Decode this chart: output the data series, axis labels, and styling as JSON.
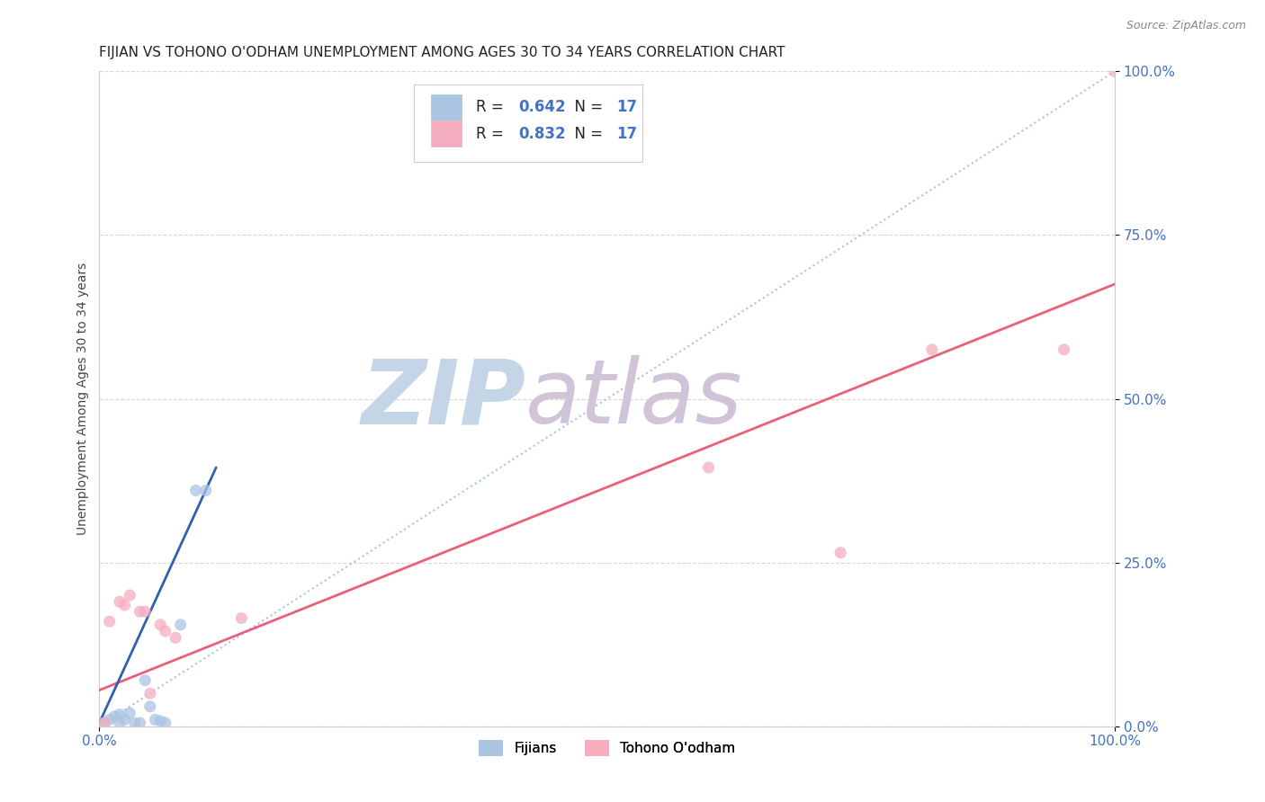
{
  "title": "FIJIAN VS TOHONO O'ODHAM UNEMPLOYMENT AMONG AGES 30 TO 34 YEARS CORRELATION CHART",
  "source": "Source: ZipAtlas.com",
  "ylabel": "Unemployment Among Ages 30 to 34 years",
  "xlim": [
    0.0,
    1.0
  ],
  "ylim": [
    0.0,
    1.0
  ],
  "xtick_positions": [
    0.0,
    1.0
  ],
  "xtick_labels": [
    "0.0%",
    "100.0%"
  ],
  "ytick_positions": [
    0.0,
    0.25,
    0.5,
    0.75,
    1.0
  ],
  "ytick_labels": [
    "0.0%",
    "25.0%",
    "50.0%",
    "75.0%",
    "100.0%"
  ],
  "fijian_R": "0.642",
  "fijian_N": "17",
  "tohono_R": "0.832",
  "tohono_N": "17",
  "fijian_color": "#aac4e2",
  "tohono_color": "#f5adc0",
  "fijian_line_color": "#3060b0",
  "tohono_line_color": "#e8607a",
  "diagonal_color": "#aac4e2",
  "watermark_zip": "ZIP",
  "watermark_atlas": "atlas",
  "watermark_color_zip": "#c5d5e8",
  "watermark_color_atlas": "#d0c5d8",
  "fijian_scatter_x": [
    0.005,
    0.01,
    0.015,
    0.02,
    0.02,
    0.025,
    0.03,
    0.035,
    0.04,
    0.045,
    0.05,
    0.055,
    0.06,
    0.065,
    0.08,
    0.095,
    0.105
  ],
  "fijian_scatter_y": [
    0.005,
    0.01,
    0.015,
    0.005,
    0.018,
    0.01,
    0.02,
    0.005,
    0.005,
    0.07,
    0.03,
    0.01,
    0.008,
    0.005,
    0.155,
    0.36,
    0.36
  ],
  "tohono_scatter_x": [
    0.005,
    0.01,
    0.02,
    0.025,
    0.03,
    0.04,
    0.045,
    0.05,
    0.06,
    0.065,
    0.075,
    0.14,
    0.6,
    0.73,
    0.82,
    0.95,
    1.0
  ],
  "tohono_scatter_y": [
    0.005,
    0.16,
    0.19,
    0.185,
    0.2,
    0.175,
    0.175,
    0.05,
    0.155,
    0.145,
    0.135,
    0.165,
    0.395,
    0.265,
    0.575,
    0.575,
    1.0
  ],
  "fijian_trend_x": [
    0.0,
    0.115
  ],
  "fijian_trend_y": [
    0.005,
    0.395
  ],
  "tohono_trend_x": [
    0.0,
    1.0
  ],
  "tohono_trend_y": [
    0.055,
    0.675
  ],
  "background_color": "#ffffff",
  "grid_color": "#d8d8d8",
  "title_fontsize": 11,
  "label_fontsize": 10,
  "tick_color": "#4472c4",
  "tick_fontsize": 11,
  "marker_size": 90,
  "legend_fontsize": 12,
  "legend_text_color": "#222222",
  "legend_value_color": "#4472c4"
}
